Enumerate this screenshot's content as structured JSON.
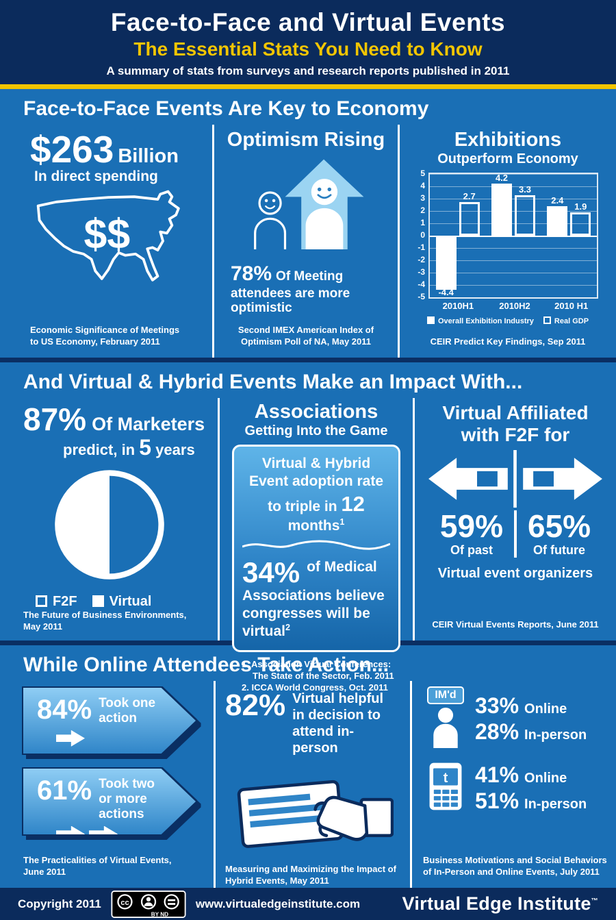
{
  "header": {
    "title": "Face-to-Face and Virtual Events",
    "subtitle": "The Essential Stats You Need to Know",
    "tagline": "A summary of stats from surveys and research reports published in 2011"
  },
  "economy": {
    "heading": "Face-to-Face Events Are Key to Economy",
    "spending": {
      "amount": "$263",
      "unit": "Billion",
      "caption": "In direct spending",
      "map_dollars": "$$",
      "source": "Economic Significance of Meetings to US Economy, February 2011"
    },
    "optimism": {
      "title": "Optimism Rising",
      "pct": "78%",
      "text": "Of Meeting attendees are more optimistic",
      "source": "Second IMEX American Index of Optimism Poll of NA, May 2011"
    },
    "exhibitions": {
      "title": "Exhibitions",
      "subtitle": "Outperform Economy",
      "source": "CEIR Predict Key Findings, Sep 2011"
    }
  },
  "impact": {
    "heading": "And Virtual & Hybrid Events Make an Impact With...",
    "marketers": {
      "pct": "87%",
      "label": "Of Marketers",
      "predict_pre": "predict, in",
      "predict_num": "5",
      "predict_post": "years",
      "legend_f2f": "F2F",
      "legend_virtual": "Virtual",
      "source": "The Future of Business Environments, May 2011"
    },
    "associations": {
      "title": "Associations",
      "subtitle": "Getting Into the Game",
      "adoption_pre": "Virtual & Hybrid Event adoption rate to triple in",
      "adoption_num": "12",
      "adoption_post": "months",
      "adoption_sup": "1",
      "medical_pct": "34%",
      "medical_text": "of Medical Associations believe congresses will be virtual",
      "medical_sup": "2",
      "footnote1": "1. Association Virtual Conferences: The State of the Sector, Feb. 2011",
      "footnote2": "2. ICCA World Congress, Oct. 2011"
    },
    "affiliated": {
      "title_line1": "Virtual Affiliated",
      "title_line2": "with F2F for",
      "past_pct": "59%",
      "past_label": "Of past",
      "future_pct": "65%",
      "future_label": "Of future",
      "caption": "Virtual event organizers",
      "source": "CEIR Virtual Events Reports, June 2011"
    }
  },
  "action": {
    "heading": "While Online Attendees Take Action...",
    "one": {
      "pct": "84%",
      "label": "Took one action"
    },
    "two": {
      "pct": "61%",
      "label": "Took two or more actions"
    },
    "actions_source": "The Practicalities of Virtual Events, June 2011",
    "decision": {
      "pct": "82%",
      "label": "Virtual helpful in decision to attend in-person",
      "source": "Measuring and Maximizing the Impact of Hybrid Events, May 2011"
    },
    "social": {
      "imd": "IM'd",
      "im_online_pct": "33%",
      "im_online_label": "Online",
      "im_person_pct": "28%",
      "im_person_label": "In-person",
      "tw_online_pct": "41%",
      "tw_online_label": "Online",
      "tw_person_pct": "51%",
      "tw_person_label": "In-person",
      "phone_letter": "t",
      "source": "Business Motivations and Social Behaviors of In-Person and Online Events, July 2011"
    }
  },
  "footer": {
    "copyright": "Copyright 2011",
    "cc_label": "BY ND",
    "url": "www.virtualedgeinstitute.com",
    "brand": "Virtual Edge Institute",
    "tm": "™"
  },
  "chart_data": [
    {
      "type": "bar",
      "title": "Exhibitions Outperform Economy",
      "categories": [
        "2010H1",
        "2010H2",
        "2010 H1"
      ],
      "series": [
        {
          "name": "Overall Exhibition Industry",
          "values": [
            -4.4,
            4.2,
            2.4
          ]
        },
        {
          "name": "Real GDP",
          "values": [
            2.7,
            3.3,
            1.9
          ]
        }
      ],
      "ylim": [
        -5,
        5
      ],
      "yticks": [
        5,
        4,
        3,
        2,
        1,
        0,
        -1,
        -2,
        -3,
        -4,
        -5
      ],
      "grid": true,
      "legend_position": "bottom"
    },
    {
      "type": "pie",
      "title": "87% Of Marketers predict, in 5 years",
      "labels": [
        "F2F",
        "Virtual"
      ],
      "values": [
        50,
        50
      ]
    }
  ],
  "colors": {
    "background": "#1a6fb5",
    "navy": "#0b2b5c",
    "yellow": "#f2c500",
    "light_blue": "#9bd4f2"
  }
}
